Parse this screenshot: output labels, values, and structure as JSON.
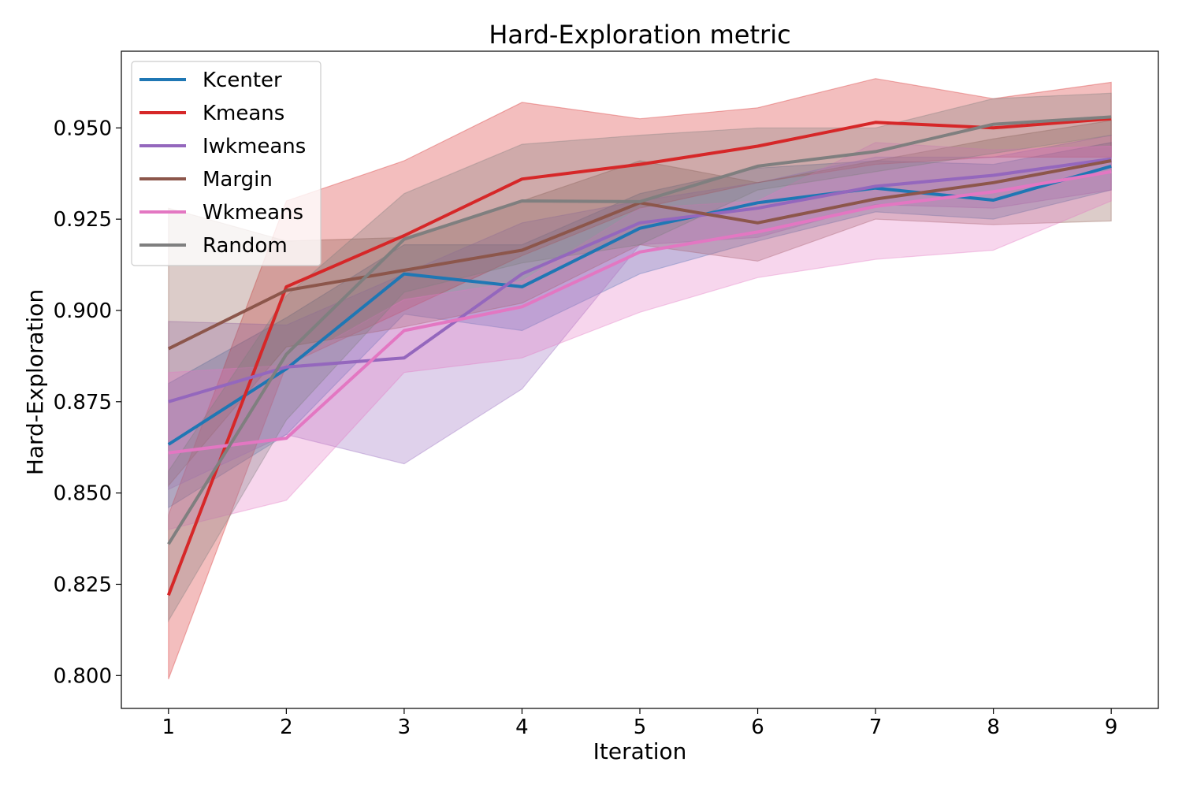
{
  "chart_data": {
    "type": "line",
    "title": "Hard-Exploration metric",
    "xlabel": "Iteration",
    "ylabel": "Hard-Exploration",
    "x": [
      1,
      2,
      3,
      4,
      5,
      6,
      7,
      8,
      9
    ],
    "xlim": [
      0.6,
      9.4
    ],
    "ylim": [
      0.791,
      0.971
    ],
    "xticks": [
      1,
      2,
      3,
      4,
      5,
      6,
      7,
      8,
      9
    ],
    "yticks": [
      0.8,
      0.825,
      0.85,
      0.875,
      0.9,
      0.925,
      0.95
    ],
    "ytick_labels": [
      "0.800",
      "0.825",
      "0.850",
      "0.875",
      "0.900",
      "0.925",
      "0.950"
    ],
    "grid": false,
    "legend_position": "top-left",
    "series": [
      {
        "name": "Kcenter",
        "color": "#1f77b4",
        "values": [
          0.8633,
          0.884,
          0.91,
          0.9065,
          0.9225,
          0.9295,
          0.9335,
          0.9302,
          0.9395
        ],
        "lower": [
          0.846,
          0.866,
          0.899,
          0.8945,
          0.91,
          0.919,
          0.927,
          0.925,
          0.933
        ],
        "upper": [
          0.88,
          0.898,
          0.918,
          0.918,
          0.932,
          0.939,
          0.941,
          0.94,
          0.946
        ]
      },
      {
        "name": "Kmeans",
        "color": "#d62728",
        "values": [
          0.822,
          0.9065,
          0.9205,
          0.936,
          0.94,
          0.945,
          0.9515,
          0.95,
          0.9525
        ],
        "lower": [
          0.799,
          0.885,
          0.9,
          0.915,
          0.928,
          0.935,
          0.94,
          0.942,
          0.942
        ],
        "upper": [
          0.844,
          0.93,
          0.941,
          0.957,
          0.9525,
          0.9555,
          0.9635,
          0.958,
          0.9625
        ]
      },
      {
        "name": "Iwkmeans",
        "color": "#9467bd",
        "values": [
          0.875,
          0.8845,
          0.887,
          0.91,
          0.924,
          0.928,
          0.934,
          0.937,
          0.9415
        ],
        "lower": [
          0.851,
          0.866,
          0.858,
          0.8785,
          0.918,
          0.92,
          0.929,
          0.928,
          0.933
        ],
        "upper": [
          0.897,
          0.896,
          0.91,
          0.924,
          0.93,
          0.935,
          0.942,
          0.942,
          0.948
        ]
      },
      {
        "name": "Margin",
        "color": "#8c564b",
        "values": [
          0.8895,
          0.9055,
          0.911,
          0.9165,
          0.9295,
          0.924,
          0.9305,
          0.935,
          0.941
        ],
        "lower": [
          0.852,
          0.89,
          0.8955,
          0.902,
          0.918,
          0.9135,
          0.925,
          0.9235,
          0.9245
        ],
        "upper": [
          0.928,
          0.919,
          0.92,
          0.93,
          0.941,
          0.935,
          0.941,
          0.947,
          0.952
        ]
      },
      {
        "name": "Wkmeans",
        "color": "#e377c2",
        "values": [
          0.861,
          0.865,
          0.8945,
          0.901,
          0.916,
          0.9215,
          0.9285,
          0.9325,
          0.938
        ],
        "lower": [
          0.84,
          0.848,
          0.883,
          0.887,
          0.8995,
          0.909,
          0.914,
          0.9165,
          0.93
        ],
        "upper": [
          0.883,
          0.885,
          0.903,
          0.908,
          0.928,
          0.93,
          0.946,
          0.944,
          0.945
        ]
      },
      {
        "name": "Random",
        "color": "#7f7f7f",
        "values": [
          0.836,
          0.888,
          0.9195,
          0.93,
          0.9298,
          0.9395,
          0.9435,
          0.951,
          0.953
        ],
        "lower": [
          0.815,
          0.87,
          0.905,
          0.913,
          0.918,
          0.933,
          0.938,
          0.943,
          0.948
        ],
        "upper": [
          0.856,
          0.904,
          0.932,
          0.9455,
          0.948,
          0.95,
          0.95,
          0.958,
          0.9595
        ]
      }
    ]
  }
}
